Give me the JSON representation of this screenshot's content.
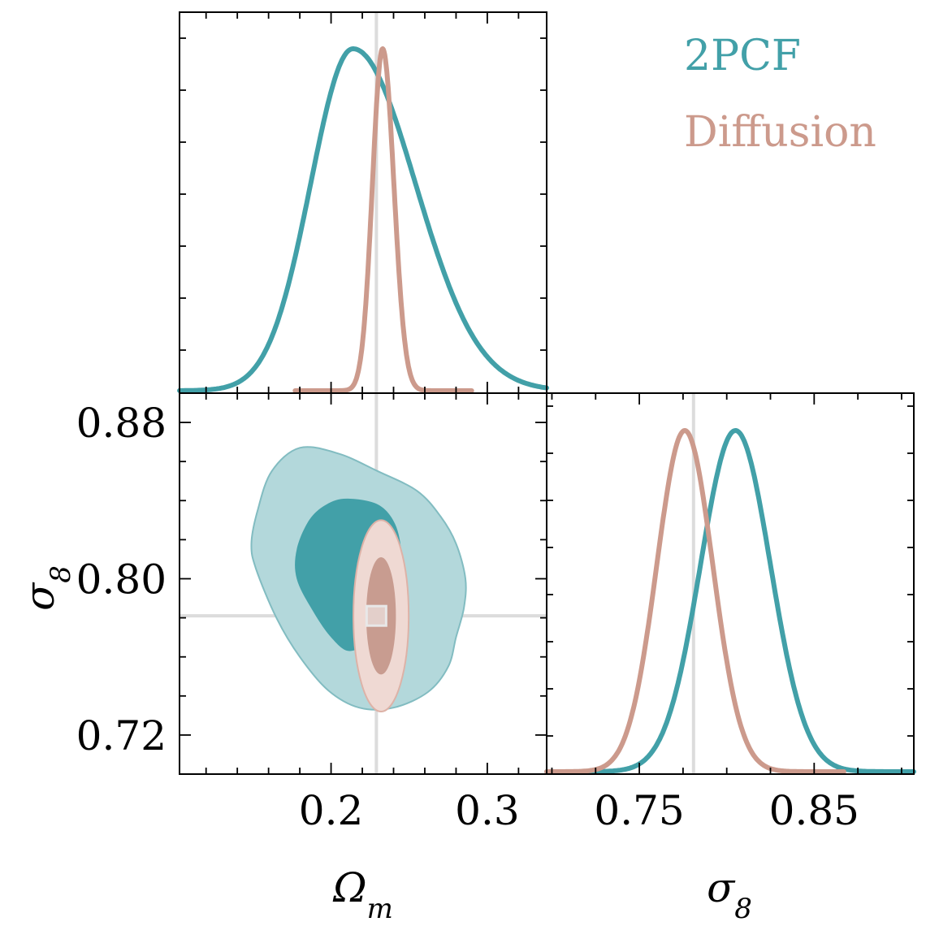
{
  "chart_data": {
    "type": "corner",
    "parameters": [
      {
        "symbol": "Ωm",
        "base": "Ω",
        "sub": "m",
        "range": [
          0.103,
          0.338
        ],
        "ticks": [
          0.2,
          0.3
        ],
        "tick_labels": [
          "0.2",
          "0.3"
        ],
        "truth": 0.229
      },
      {
        "symbol": "σ8",
        "base": "σ",
        "sub": "8",
        "range": [
          0.7,
          0.895
        ],
        "ticks": [
          0.72,
          0.8,
          0.88
        ],
        "tick_labels": [
          "0.72",
          "0.80",
          "0.88"
        ],
        "sigma8_diag_range": [
          0.697,
          0.907
        ],
        "diag_ticks": [
          0.75,
          0.85
        ],
        "diag_tick_labels": [
          "0.75",
          "0.85"
        ],
        "truth": 0.781
      }
    ],
    "x_axis_labels": {
      "left": {
        "base": "Ω",
        "sub": "m"
      },
      "right": {
        "base": "σ",
        "sub": "8"
      }
    },
    "y_axis_label": {
      "base": "σ",
      "sub": "8"
    },
    "series": [
      {
        "name": "2PCF",
        "color": "#42a0a8",
        "omega_m_marginal": {
          "mean": 0.214,
          "sd_left": 0.027,
          "sd_right": 0.04
        },
        "sigma8_marginal": {
          "mean": 0.805,
          "sd_left": 0.02,
          "sd_right": 0.02
        },
        "contour_68": [
          [
            0.21,
            0.841
          ],
          [
            0.23,
            0.838
          ],
          [
            0.241,
            0.828
          ],
          [
            0.245,
            0.813
          ],
          [
            0.243,
            0.8
          ],
          [
            0.236,
            0.784
          ],
          [
            0.226,
            0.77
          ],
          [
            0.212,
            0.763
          ],
          [
            0.2,
            0.77
          ],
          [
            0.188,
            0.784
          ],
          [
            0.178,
            0.8
          ],
          [
            0.178,
            0.815
          ],
          [
            0.186,
            0.83
          ],
          [
            0.197,
            0.838
          ]
        ],
        "contour_95": [
          [
            0.18,
            0.867
          ],
          [
            0.205,
            0.864
          ],
          [
            0.23,
            0.855
          ],
          [
            0.255,
            0.845
          ],
          [
            0.27,
            0.832
          ],
          [
            0.28,
            0.818
          ],
          [
            0.286,
            0.8
          ],
          [
            0.285,
            0.785
          ],
          [
            0.28,
            0.77
          ],
          [
            0.275,
            0.755
          ],
          [
            0.262,
            0.742
          ],
          [
            0.24,
            0.734
          ],
          [
            0.218,
            0.734
          ],
          [
            0.198,
            0.743
          ],
          [
            0.18,
            0.76
          ],
          [
            0.165,
            0.78
          ],
          [
            0.152,
            0.805
          ],
          [
            0.149,
            0.818
          ],
          [
            0.153,
            0.835
          ],
          [
            0.162,
            0.855
          ]
        ]
      },
      {
        "name": "Diffusion",
        "color": "#cc9a8c",
        "omega_m_marginal": {
          "mean": 0.233,
          "sd_left": 0.0065,
          "sd_right": 0.0072
        },
        "sigma8_marginal": {
          "mean": 0.776,
          "sd_left": 0.016,
          "sd_right": 0.016
        },
        "contour_68": {
          "center": [
            0.232,
            0.781
          ],
          "radii": [
            0.0095,
            0.03
          ]
        },
        "contour_95": {
          "center": [
            0.232,
            0.781
          ],
          "radii": [
            0.0177,
            0.049
          ]
        }
      }
    ],
    "truth_marker": {
      "omega_m": 0.229,
      "sigma8": 0.781
    }
  }
}
